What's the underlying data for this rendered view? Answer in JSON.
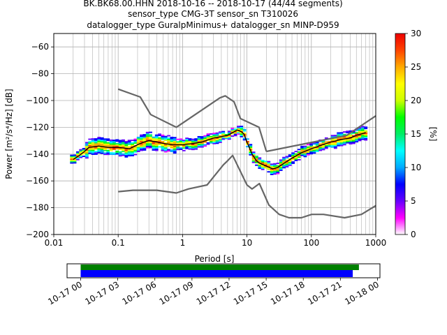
{
  "title": {
    "line1": "BK.BK68.00.HHN   2018-10-16 -- 2018-10-17  (44/44 segments)",
    "line2": "sensor_type CMG-3T sensor_sn T310026",
    "line3": "datalogger_type GuralpMinimus+ datalogger_sn MINP-D959"
  },
  "chart_data": [
    {
      "type": "heatmap",
      "subtype": "probabilistic power spectral density",
      "xlabel": "Period [s]",
      "ylabel": "Power [m²/s⁴/Hz] [dB]",
      "xscale": "log",
      "xlim": [
        0.01,
        1000
      ],
      "ylim": [
        -200,
        -50
      ],
      "x_ticks": [
        {
          "v": 0.01,
          "label": "0.01"
        },
        {
          "v": 0.1,
          "label": "0.1"
        },
        {
          "v": 1,
          "label": "1"
        },
        {
          "v": 10,
          "label": "10"
        },
        {
          "v": 100,
          "label": "100"
        },
        {
          "v": 1000,
          "label": "1000"
        }
      ],
      "y_ticks": [
        {
          "v": -60,
          "label": "−60"
        },
        {
          "v": -80,
          "label": "−80"
        },
        {
          "v": -100,
          "label": "−100"
        },
        {
          "v": -120,
          "label": "−120"
        },
        {
          "v": -140,
          "label": "−140"
        },
        {
          "v": -160,
          "label": "−160"
        },
        {
          "v": -180,
          "label": "−180"
        },
        {
          "v": -200,
          "label": "−200"
        }
      ],
      "grid": true,
      "colorbar": {
        "label": "[%]",
        "range": [
          0,
          30
        ],
        "ticks": [
          {
            "v": 0,
            "label": "0"
          },
          {
            "v": 5,
            "label": "5"
          },
          {
            "v": 10,
            "label": "10"
          },
          {
            "v": 15,
            "label": "15"
          },
          {
            "v": 20,
            "label": "20"
          },
          {
            "v": 25,
            "label": "25"
          },
          {
            "v": 30,
            "label": "30"
          }
        ],
        "colors": [
          "#ffffff",
          "#ff00ff",
          "#6600ff",
          "#0000ff",
          "#00aaff",
          "#00ffff",
          "#00ee66",
          "#00ff00",
          "#ccff00",
          "#ffff00",
          "#ffaa00",
          "#ff4400",
          "#ee0000"
        ]
      },
      "mode_curve": {
        "color": "#000000",
        "x": [
          0.02,
          0.025,
          0.03,
          0.035,
          0.05,
          0.07,
          0.1,
          0.15,
          0.2,
          0.25,
          0.3,
          0.4,
          0.5,
          0.7,
          1,
          1.5,
          2,
          3,
          4,
          5,
          6,
          7,
          8,
          9,
          10,
          12,
          14,
          16,
          18,
          20,
          25,
          30,
          40,
          50,
          70,
          100,
          150,
          200,
          300,
          400,
          500,
          700
        ],
        "y": [
          -144,
          -141,
          -138,
          -135,
          -134,
          -135,
          -135,
          -136,
          -133,
          -131,
          -130,
          -131,
          -132,
          -133,
          -133,
          -132,
          -131,
          -128,
          -127,
          -126,
          -124,
          -122,
          -123,
          -125,
          -131,
          -140,
          -145,
          -147,
          -148,
          -149,
          -151,
          -150,
          -146,
          -143,
          -139,
          -136,
          -133,
          -131,
          -129,
          -128,
          -126,
          -124
        ]
      },
      "noise_models": [
        {
          "name": "high",
          "color": "#666666",
          "x": [
            0.1,
            0.22,
            0.32,
            0.8,
            3.8,
            4.6,
            6.3,
            7.9,
            15.4,
            20
          ],
          "y": [
            -91.5,
            -97.4,
            -110.5,
            -120,
            -98,
            -96.5,
            -101,
            -113.5,
            -120,
            -138
          ]
        },
        {
          "name": "high-long",
          "color": "#666666",
          "x": [
            20,
            354.8,
            1000
          ],
          "y": [
            -138,
            -126,
            -111.5
          ]
        },
        {
          "name": "low",
          "color": "#666666",
          "x": [
            0.1,
            0.17,
            0.4,
            0.8,
            1.24,
            2.4,
            4.3,
            5,
            6,
            10,
            12,
            15.6,
            21.9,
            31.6,
            45,
            70,
            101,
            154,
            328,
            600,
            1000
          ],
          "y": [
            -168,
            -167,
            -167,
            -169,
            -166,
            -163,
            -148,
            -145,
            -141,
            -163,
            -166,
            -162,
            -178,
            -185,
            -187.5,
            -187.5,
            -185,
            -185,
            -187.5,
            -185,
            -178.5
          ]
        }
      ]
    },
    {
      "type": "timeline",
      "x_ticks": [
        {
          "h": 0,
          "label": "10-17 00"
        },
        {
          "h": 3,
          "label": "10-17 03"
        },
        {
          "h": 6,
          "label": "10-17 06"
        },
        {
          "h": 9,
          "label": "10-17 09"
        },
        {
          "h": 12,
          "label": "10-17 12"
        },
        {
          "h": 15,
          "label": "10-17 15"
        },
        {
          "h": 18,
          "label": "10-17 18"
        },
        {
          "h": 21,
          "label": "10-17 21"
        },
        {
          "h": 24,
          "label": "10-18 00"
        }
      ],
      "xlim_hours": [
        -1.1,
        24.2
      ],
      "bars": [
        {
          "name": "data",
          "color": "#008000",
          "start_h": 0,
          "end_h": 22.5
        },
        {
          "name": "used",
          "color": "#0000ff",
          "start_h": 0,
          "end_h": 22.0
        }
      ]
    }
  ]
}
